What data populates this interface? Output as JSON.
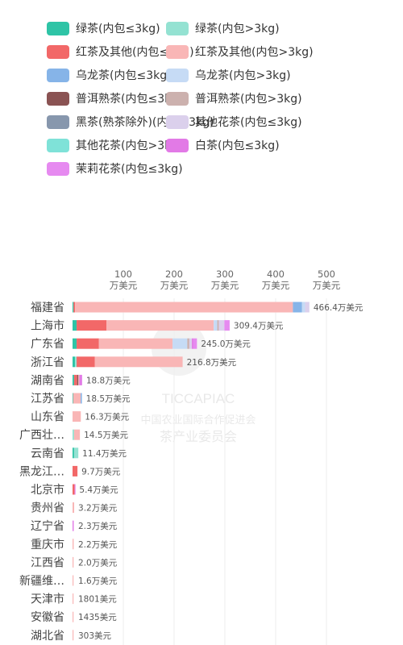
{
  "chart_data": {
    "type": "bar",
    "stacked": true,
    "orientation": "horizontal",
    "x_ticks": [
      {
        "value": 100,
        "line1": "100",
        "line2": "万美元"
      },
      {
        "value": 200,
        "line1": "200",
        "line2": "万美元"
      },
      {
        "value": 300,
        "line1": "300",
        "line2": "万美元"
      },
      {
        "value": 400,
        "line1": "400",
        "line2": "万美元"
      },
      {
        "value": 500,
        "line1": "500",
        "line2": "万美元"
      }
    ],
    "xlim": [
      0,
      520
    ],
    "series": [
      {
        "name": "绿茶(内包≤3kg)",
        "color": "#2ec4a6"
      },
      {
        "name": "绿茶(内包>3kg)",
        "color": "#94e2d2"
      },
      {
        "name": "红茶及其他(内包≤3kg)",
        "color": "#f26868"
      },
      {
        "name": "红茶及其他(内包>3kg)",
        "color": "#f9b6b6"
      },
      {
        "name": "乌龙茶(内包≤3kg)",
        "color": "#86b4e8"
      },
      {
        "name": "乌龙茶(内包>3kg)",
        "color": "#c6dbf5"
      },
      {
        "name": "普洱熟茶(内包≤3kg)",
        "color": "#8a5353"
      },
      {
        "name": "普洱熟茶(内包>3kg)",
        "color": "#ccb1ae"
      },
      {
        "name": "黑茶(熟茶除外)(内包≤3kg)",
        "color": "#8797ad"
      },
      {
        "name": "其他花茶(内包≤3kg)",
        "color": "#dbd0ec"
      },
      {
        "name": "其他花茶(内包>3kg)",
        "color": "#7fe2d8"
      },
      {
        "name": "白茶(内包≤3kg)",
        "color": "#e27ae6"
      },
      {
        "name": "茉莉花茶(内包≤3kg)",
        "color": "#e68af0"
      }
    ],
    "categories": [
      {
        "name": "福建省",
        "total_label": "466.4万美元",
        "segments": [
          [
            0,
            2
          ],
          [
            2,
            3
          ],
          [
            3,
            429
          ],
          [
            4,
            18
          ],
          [
            5,
            6
          ],
          [
            9,
            8.4
          ]
        ]
      },
      {
        "name": "上海市",
        "total_label": "309.4万美元",
        "segments": [
          [
            0,
            8
          ],
          [
            2,
            59
          ],
          [
            3,
            211
          ],
          [
            5,
            7
          ],
          [
            7,
            3
          ],
          [
            9,
            11
          ],
          [
            12,
            10.4
          ]
        ]
      },
      {
        "name": "广东省",
        "total_label": "245.0万美元",
        "segments": [
          [
            0,
            8
          ],
          [
            2,
            44
          ],
          [
            3,
            145
          ],
          [
            5,
            29
          ],
          [
            7,
            4
          ],
          [
            9,
            5
          ],
          [
            11,
            3
          ],
          [
            12,
            7
          ]
        ]
      },
      {
        "name": "浙江省",
        "total_label": "216.8万美元",
        "segments": [
          [
            0,
            5
          ],
          [
            1,
            3
          ],
          [
            2,
            36
          ],
          [
            3,
            172.8
          ]
        ]
      },
      {
        "name": "湖南省",
        "total_label": "18.8万美元",
        "segments": [
          [
            0,
            3
          ],
          [
            2,
            6
          ],
          [
            6,
            2.5
          ],
          [
            3,
            2
          ],
          [
            11,
            5.3
          ]
        ]
      },
      {
        "name": "江苏省",
        "total_label": "18.5万美元",
        "segments": [
          [
            0,
            1
          ],
          [
            3,
            15
          ],
          [
            4,
            2.5
          ]
        ]
      },
      {
        "name": "山东省",
        "total_label": "16.3万美元",
        "segments": [
          [
            3,
            16.3
          ]
        ]
      },
      {
        "name": "广西壮…",
        "total_label": "14.5万美元",
        "segments": [
          [
            1,
            3
          ],
          [
            3,
            11.5
          ]
        ]
      },
      {
        "name": "云南省",
        "total_label": "11.4万美元",
        "segments": [
          [
            0,
            3
          ],
          [
            1,
            8.4
          ]
        ]
      },
      {
        "name": "黑龙江…",
        "total_label": "9.7万美元",
        "segments": [
          [
            2,
            9.7
          ]
        ]
      },
      {
        "name": "北京市",
        "total_label": "5.4万美元",
        "segments": [
          [
            2,
            4
          ],
          [
            12,
            1.4
          ]
        ]
      },
      {
        "name": "贵州省",
        "total_label": "3.2万美元",
        "segments": [
          [
            3,
            3.2
          ]
        ]
      },
      {
        "name": "辽宁省",
        "total_label": "2.3万美元",
        "segments": [
          [
            11,
            2.3
          ]
        ]
      },
      {
        "name": "重庆市",
        "total_label": "2.2万美元",
        "segments": [
          [
            3,
            2.2
          ]
        ]
      },
      {
        "name": "江西省",
        "total_label": "2.0万美元",
        "segments": [
          [
            3,
            2.0
          ]
        ]
      },
      {
        "name": "新疆维…",
        "total_label": "1.6万美元",
        "segments": [
          [
            3,
            1.6
          ]
        ]
      },
      {
        "name": "天津市",
        "total_label": "1801美元",
        "segments": [
          [
            3,
            0.18
          ]
        ]
      },
      {
        "name": "安徽省",
        "total_label": "1435美元",
        "segments": [
          [
            3,
            0.14
          ]
        ]
      },
      {
        "name": "湖北省",
        "total_label": "303美元",
        "segments": [
          [
            3,
            0.03
          ]
        ]
      }
    ],
    "grid": true,
    "legend_position": "top"
  },
  "watermark": {
    "line1": "TICCAPIAC",
    "line2": "中国农业国际合作促进会",
    "line3": "茶产业委员会"
  }
}
